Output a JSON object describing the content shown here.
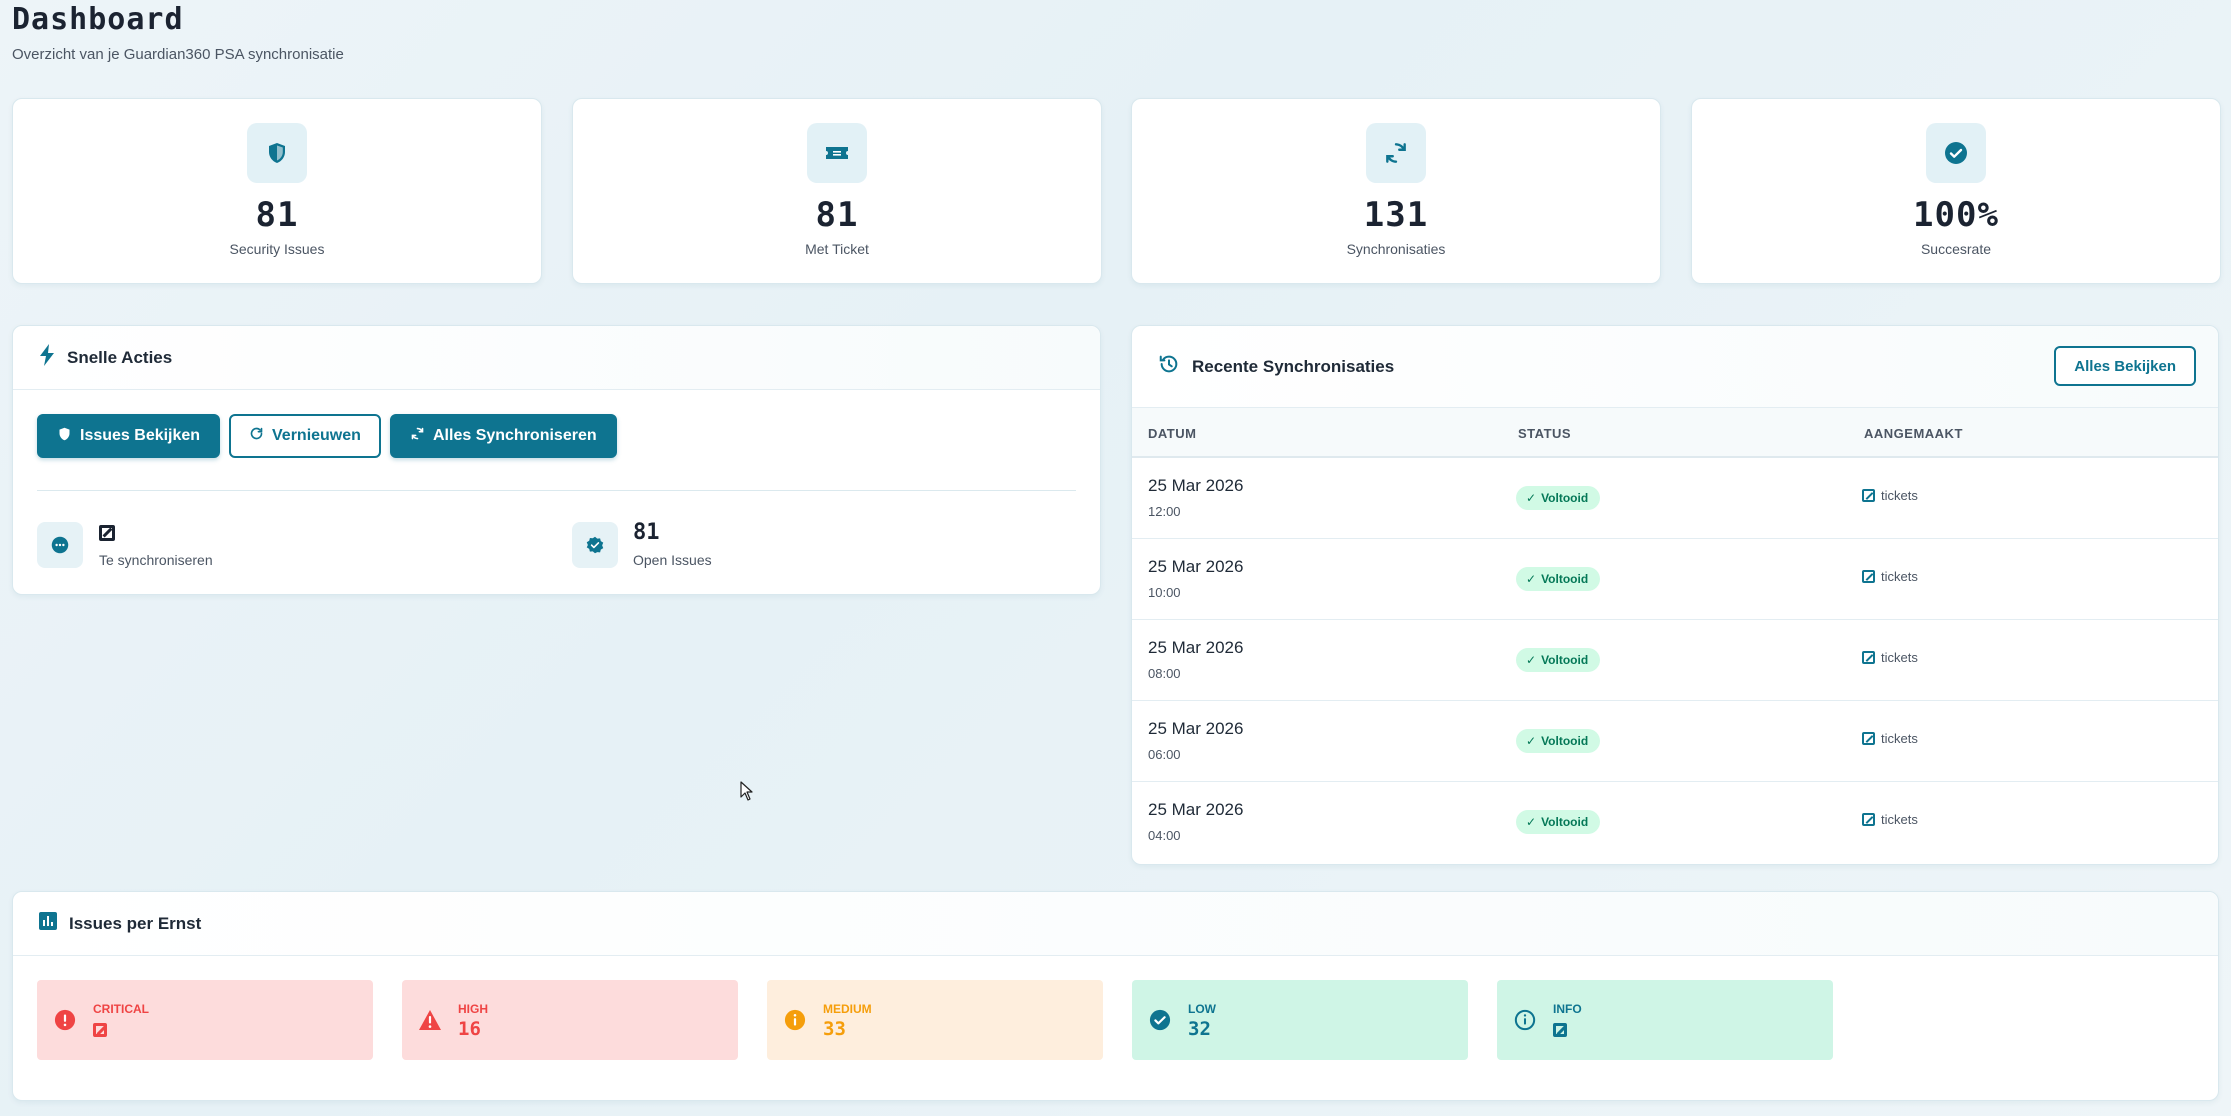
{
  "page": {
    "title": "Dashboard",
    "subtitle": "Overzicht van je Guardian360 PSA synchronisatie"
  },
  "stats": [
    {
      "icon": "shield-icon",
      "value": "81",
      "label": "Security Issues"
    },
    {
      "icon": "ticket-icon",
      "value": "81",
      "label": "Met Ticket"
    },
    {
      "icon": "sync-icon",
      "value": "131",
      "label": "Synchronisaties"
    },
    {
      "icon": "check-circle-icon",
      "value": "100%",
      "label": "Succesrate"
    }
  ],
  "quick_actions": {
    "title": "Snelle Acties",
    "buttons": {
      "issues": "Issues Bekijken",
      "refresh": "Vernieuwen",
      "sync_all": "Alles Synchroniseren"
    },
    "to_sync": {
      "label": "Te synchroniseren"
    },
    "open_issues": {
      "value": "81",
      "label": "Open Issues"
    }
  },
  "recent_syncs": {
    "title": "Recente Synchronisaties",
    "view_all": "Alles Bekijken",
    "columns": [
      "DATUM",
      "STATUS",
      "AANGEMAAKT"
    ],
    "rows": [
      {
        "date": "25 Mar 2026",
        "time": "12:00",
        "status": "Voltooid",
        "created": "tickets"
      },
      {
        "date": "25 Mar 2026",
        "time": "10:00",
        "status": "Voltooid",
        "created": "tickets"
      },
      {
        "date": "25 Mar 2026",
        "time": "08:00",
        "status": "Voltooid",
        "created": "tickets"
      },
      {
        "date": "25 Mar 2026",
        "time": "06:00",
        "status": "Voltooid",
        "created": "tickets"
      },
      {
        "date": "25 Mar 2026",
        "time": "04:00",
        "status": "Voltooid",
        "created": "tickets"
      }
    ]
  },
  "severity": {
    "title": "Issues per Ernst",
    "items": [
      {
        "label": "CRITICAL",
        "value": null,
        "color": "#ef4444",
        "bg": "#fddcdc",
        "icon": "alert-circle-icon"
      },
      {
        "label": "HIGH",
        "value": "16",
        "color": "#ef4444",
        "bg": "#fddcdc",
        "icon": "warning-triangle-icon"
      },
      {
        "label": "MEDIUM",
        "value": "33",
        "color": "#f59e0b",
        "bg": "#feeedd",
        "icon": "info-circle-filled-icon"
      },
      {
        "label": "LOW",
        "value": "32",
        "color": "#0e7490",
        "bg": "#cff5e6",
        "icon": "check-circle-icon"
      },
      {
        "label": "INFO",
        "value": null,
        "color": "#0e7490",
        "bg": "#cff5e6",
        "icon": "info-outline-icon"
      }
    ]
  },
  "colors": {
    "accent": "#0e7490",
    "success": "#047857"
  }
}
